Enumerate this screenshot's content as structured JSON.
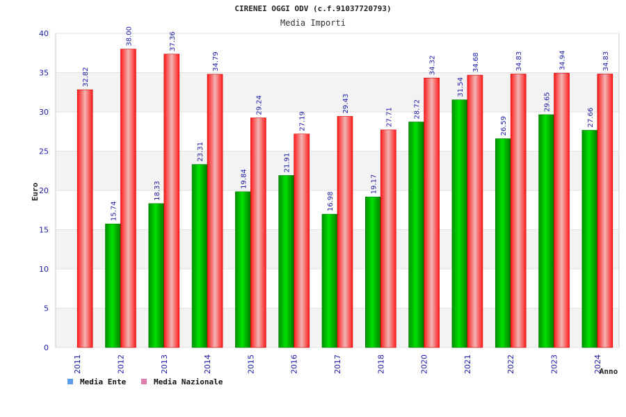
{
  "chart_data": {
    "type": "bar",
    "title": "CIRENEI OGGI ODV (c.f.91037720793)",
    "subtitle": "Media Importi",
    "xlabel": "Anno",
    "ylabel": "Euro",
    "ylim": [
      0,
      40
    ],
    "yticks": [
      0,
      5,
      10,
      15,
      20,
      25,
      30,
      35,
      40
    ],
    "grid": true,
    "legend_position": "bottom-left",
    "categories": [
      "2011",
      "2012",
      "2013",
      "2014",
      "2015",
      "2016",
      "2017",
      "2018",
      "2020",
      "2021",
      "2022",
      "2023",
      "2024"
    ],
    "series": [
      {
        "name": "Media Ente",
        "color": "#00b400",
        "legend_color": "#5b9bf0",
        "values": [
          null,
          15.74,
          18.33,
          23.31,
          19.84,
          21.91,
          16.98,
          19.17,
          28.72,
          31.54,
          26.59,
          29.65,
          27.66
        ],
        "labels": [
          "",
          "15.74",
          "18.33",
          "23.31",
          "19.84",
          "21.91",
          "16.98",
          "19.17",
          "28.72",
          "31.54",
          "26.59",
          "29.65",
          "27.66"
        ]
      },
      {
        "name": "Media Nazionale",
        "color": "#ee1111",
        "legend_color": "#e07bb0",
        "values": [
          32.82,
          38.0,
          37.36,
          34.79,
          29.24,
          27.19,
          29.43,
          27.71,
          34.32,
          34.68,
          34.83,
          34.94,
          34.83
        ],
        "labels": [
          "32.82",
          "38.00",
          "37.36",
          "34.79",
          "29.24",
          "27.19",
          "29.43",
          "27.71",
          "34.32",
          "34.68",
          "34.83",
          "34.94",
          "34.83"
        ]
      }
    ]
  }
}
